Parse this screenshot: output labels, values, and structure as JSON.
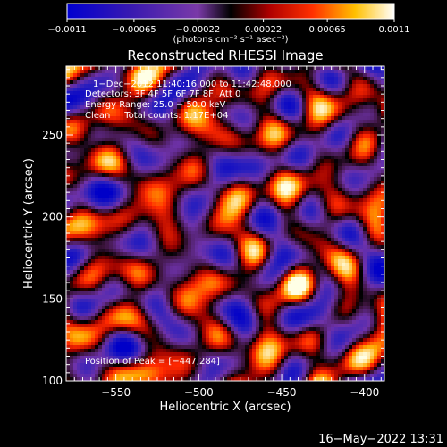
{
  "chart_data": {
    "type": "heatmap",
    "title": "Reconstructed RHESSI Image",
    "xlabel": "Heliocentric X (arcsec)",
    "ylabel": "Heliocentric Y (arcsec)",
    "xlim": [
      -580,
      -388
    ],
    "ylim": [
      100,
      292
    ],
    "x_ticks": [
      -550,
      -500,
      -450,
      -400
    ],
    "x_tick_labels": [
      "−550",
      "−500",
      "−450",
      "−400"
    ],
    "y_ticks": [
      100,
      150,
      200,
      250
    ],
    "y_tick_labels": [
      "100",
      "150",
      "200",
      "250"
    ],
    "colorbar": {
      "min": -0.0011,
      "max": 0.0011,
      "ticks": [
        -0.0011,
        -0.00065,
        -0.00022,
        0.00022,
        0.00065,
        0.0011
      ],
      "tick_labels": [
        "−0.0011",
        "−0.00065",
        "−0.00022",
        "0.00022",
        "0.00065",
        "0.0011"
      ],
      "unit_label": "(photons cm⁻² s⁻¹ asec⁻²)"
    },
    "annotations": [
      "1−Dec−2012 11:40:16.000 to 11:42:48.000",
      "Detectors: 3F 4F 5F 6F 7F 8F, Att 0",
      "Energy Range: 25.0 − 50.0 keV",
      "Clean     Total counts: 1.17E+04"
    ],
    "peak_label": "Position of Peak = [−447,284]",
    "peak_position": [
      -447,
      284
    ],
    "grid": false,
    "colormap": "blue-purple-red-yellow-white"
  },
  "footer": {
    "timestamp": "16−May−2022 13:31"
  }
}
